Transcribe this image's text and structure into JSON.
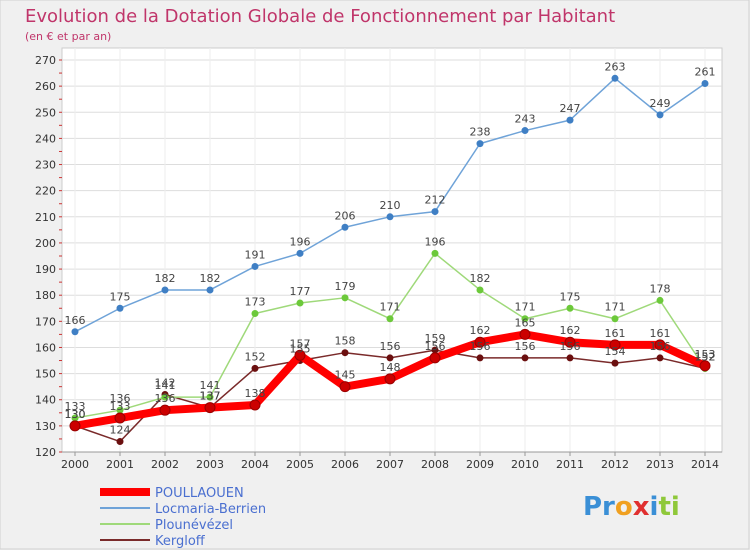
{
  "chart_data": {
    "type": "line",
    "title": "Evolution de la Dotation Globale de Fonctionnement par Habitant",
    "subtitle": "(en € et par an)",
    "xlabel": "",
    "ylabel": "",
    "ylim": [
      120,
      270
    ],
    "yticks": [
      120,
      130,
      140,
      150,
      160,
      170,
      180,
      190,
      200,
      210,
      220,
      230,
      240,
      250,
      260,
      270
    ],
    "categories": [
      "2000",
      "2001",
      "2002",
      "2003",
      "2004",
      "2005",
      "2006",
      "2007",
      "2008",
      "2009",
      "2010",
      "2011",
      "2012",
      "2013",
      "2014"
    ],
    "series": [
      {
        "name": "Kergloff",
        "color": "#7a2a2a",
        "marker": "#6b0f0f",
        "values": [
          130,
          124,
          142,
          137,
          152,
          155,
          158,
          156,
          159,
          156,
          156,
          156,
          154,
          156,
          152
        ]
      },
      {
        "name": "Plounévézel",
        "color": "#9fd97a",
        "marker": "#6cc93a",
        "values": [
          133,
          136,
          141,
          141,
          173,
          177,
          179,
          171,
          196,
          182,
          171,
          175,
          171,
          178,
          152
        ]
      },
      {
        "name": "Locmaria-Berrien",
        "color": "#6fa3d8",
        "marker": "#3f7fc4",
        "values": [
          166,
          175,
          182,
          182,
          191,
          196,
          206,
          210,
          212,
          238,
          243,
          247,
          263,
          249,
          261
        ]
      },
      {
        "name": "POULLAOUEN",
        "color": "#ff0000",
        "marker": "#cc0000",
        "values": [
          130,
          133,
          136,
          137,
          138,
          157,
          145,
          148,
          156,
          162,
          165,
          162,
          161,
          161,
          153
        ]
      }
    ],
    "legend": [
      "POULLAOUEN",
      "Locmaria-Berrien",
      "Plounévézel",
      "Kergloff"
    ]
  },
  "brand": {
    "pr": "Pr",
    "o": "o",
    "x": "x",
    "i": "i",
    "ti": "ti"
  }
}
